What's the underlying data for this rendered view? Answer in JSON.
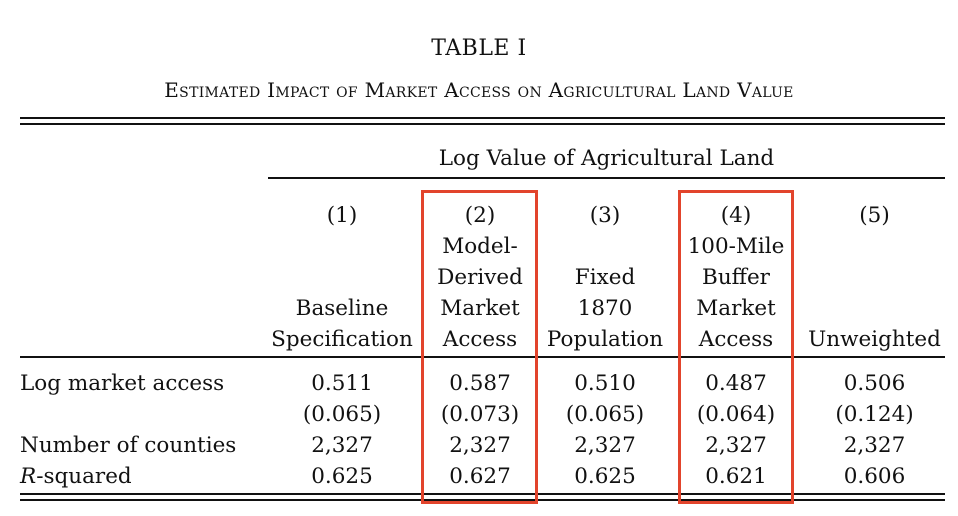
{
  "table": {
    "title": "TABLE I",
    "subtitle": "Estimated Impact of Market Access on Agricultural Land Value",
    "panel_header": "Log Value of Agricultural Land",
    "columns": [
      {
        "number": "(1)",
        "label_lines": [
          "Baseline",
          "Specification"
        ]
      },
      {
        "number": "(2)",
        "label_lines": [
          "Model-",
          "Derived",
          "Market",
          "Access"
        ]
      },
      {
        "number": "(3)",
        "label_lines": [
          "Fixed",
          "1870",
          "Population"
        ]
      },
      {
        "number": "(4)",
        "label_lines": [
          "100-Mile",
          "Buffer",
          "Market",
          "Access"
        ]
      },
      {
        "number": "(5)",
        "label_lines": [
          "Unweighted"
        ]
      }
    ],
    "rows": [
      {
        "label": "Log market access",
        "values": [
          "0.511",
          "0.587",
          "0.510",
          "0.487",
          "0.506"
        ]
      },
      {
        "label": "",
        "values": [
          "(0.065)",
          "(0.073)",
          "(0.065)",
          "(0.064)",
          "(0.124)"
        ]
      },
      {
        "label": "Number of counties",
        "values": [
          "2,327",
          "2,327",
          "2,327",
          "2,327",
          "2,327"
        ]
      },
      {
        "label_italic": "R",
        "label_rest": "-squared",
        "values": [
          "0.625",
          "0.627",
          "0.625",
          "0.621",
          "0.606"
        ]
      }
    ],
    "highlight_color": "#e2442c"
  }
}
